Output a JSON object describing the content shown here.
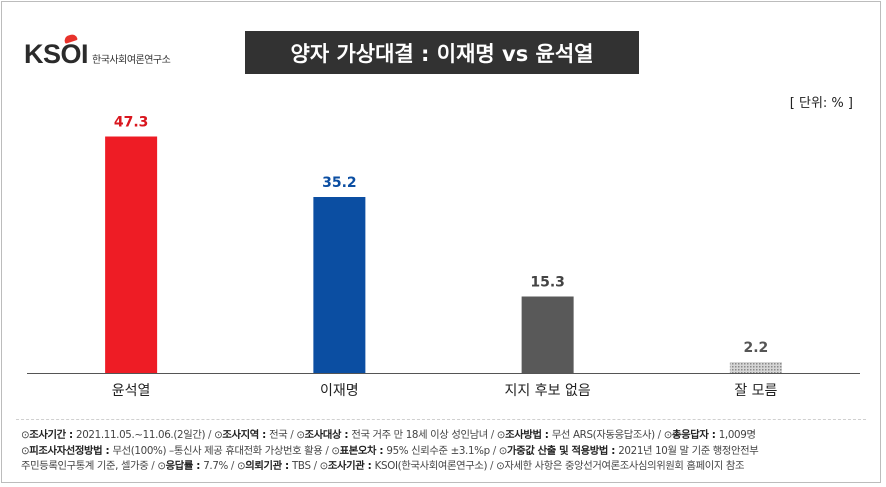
{
  "logo": {
    "mark": "KSOI",
    "text": "한국사회여론연구소"
  },
  "title": "양자 가상대결 : 이재명 vs 윤석열",
  "unit": "[ 단위: % ]",
  "chart_data": {
    "type": "bar",
    "title": "양자 가상대결 : 이재명 vs 윤석열",
    "categories": [
      "윤석열",
      "이재명",
      "지지 후보 없음",
      "잘 모름"
    ],
    "values": [
      47.3,
      35.2,
      15.3,
      2.2
    ],
    "value_labels": [
      "47.3",
      "35.2",
      "15.3",
      "2.2"
    ],
    "colors": [
      "#ee1c25",
      "#0b4ea2",
      "#595959",
      "#b3b3b3"
    ],
    "label_colors": [
      "#d9161e",
      "#0b4ea2",
      "#444444",
      "#555555"
    ],
    "ylim": [
      0,
      50
    ],
    "grid": false,
    "legend": "none"
  },
  "footer": {
    "lines": [
      [
        {
          "key": "조사기간",
          "value": "2021.11.05.~11.06.(2일간)"
        },
        {
          "key": "조사지역",
          "value": "전국"
        },
        {
          "key": "조사대상",
          "value": "전국 거주 만 18세 이상 성인남녀"
        },
        {
          "key": "조사방법",
          "value": "무선 ARS(자동응답조사)"
        },
        {
          "key": "총응답자",
          "value": "1,009명"
        }
      ],
      [
        {
          "key": "피조사자선정방법",
          "value": "무선(100%) –통신사 제공 휴대전화 가상번호 활용"
        },
        {
          "key": "표본오차",
          "value": "95% 신뢰수준 ±3.1%p"
        },
        {
          "key": "가중값 산출 및 적용방법",
          "value": "2021년 10월 말 기준 행정안전부"
        }
      ],
      [
        {
          "key": "",
          "value": "주민등록인구통계 기준, 셀가중"
        },
        {
          "key": "응답률",
          "value": "7.7%"
        },
        {
          "key": "의뢰기관",
          "value": "TBS"
        },
        {
          "key": "조사기관",
          "value": "KSOI(한국사회여론연구소)"
        },
        {
          "key": "",
          "value": "자세한 사항은 중앙선거여론조사심의위원회 홈페이지 참조",
          "marker": true
        }
      ]
    ],
    "marker": "⊙"
  }
}
